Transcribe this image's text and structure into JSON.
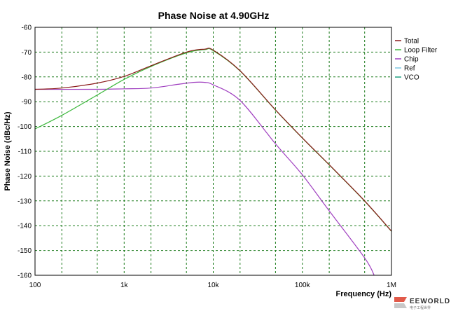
{
  "chart_data": {
    "type": "line",
    "title": "Phase Noise at 4.90GHz",
    "xlabel": "Frequency (Hz)",
    "ylabel": "Phase Noise (dBc/Hz)",
    "x_scale": "log",
    "xlim": [
      100,
      1000000
    ],
    "ylim": [
      -160,
      -60
    ],
    "x_ticks": [
      100,
      1000,
      10000,
      100000,
      1000000
    ],
    "x_tick_labels": [
      "100",
      "1k",
      "10k",
      "100k",
      "1M"
    ],
    "y_ticks": [
      -60,
      -70,
      -80,
      -90,
      -100,
      -110,
      -120,
      -130,
      -140,
      -150,
      -160
    ],
    "y_tick_labels": [
      "-60",
      "-70",
      "-80",
      "-90",
      "-100",
      "-110",
      "-120",
      "-130",
      "-140",
      "-150",
      "-160"
    ],
    "grid": true,
    "legend_position": "right",
    "series": [
      {
        "name": "Total",
        "color": "#8b1a1a",
        "x": [
          100,
          200,
          500,
          1000,
          2000,
          5000,
          8000,
          10000,
          20000,
          50000,
          100000,
          200000,
          500000,
          1000000
        ],
        "y": [
          -85,
          -84.5,
          -82.5,
          -79.8,
          -75.5,
          -70,
          -68.8,
          -69.2,
          -77.5,
          -93.3,
          -104.6,
          -115.4,
          -130,
          -142.2
        ]
      },
      {
        "name": "Loop Filter",
        "color": "#3cb83c",
        "x": [
          100,
          200,
          500,
          1000,
          2000,
          5000,
          8000,
          10000,
          20000,
          50000,
          100000,
          200000,
          500000,
          1000000
        ],
        "y": [
          -101,
          -95.5,
          -87.3,
          -81,
          -75.8,
          -70.3,
          -69,
          -69.4,
          -77.6,
          -93.4,
          -104.7,
          -115.5,
          -130.1,
          -142.3
        ]
      },
      {
        "name": "Chip",
        "color": "#a040c0",
        "x": [
          100,
          500,
          1000,
          2000,
          4000,
          6000,
          8000,
          10000,
          20000,
          50000,
          100000,
          200000,
          500000,
          640000
        ],
        "y": [
          -85,
          -85,
          -84.8,
          -84.5,
          -83,
          -82.2,
          -82.2,
          -83.2,
          -89.5,
          -107,
          -119.5,
          -134,
          -153,
          -160
        ]
      },
      {
        "name": "Ref",
        "color": "#7ec8e3",
        "x": [],
        "y": []
      },
      {
        "name": "VCO",
        "color": "#20a080",
        "x": [],
        "y": []
      }
    ]
  },
  "watermark": {
    "brand": "EEWORLD",
    "sub": "电子工程世界"
  }
}
